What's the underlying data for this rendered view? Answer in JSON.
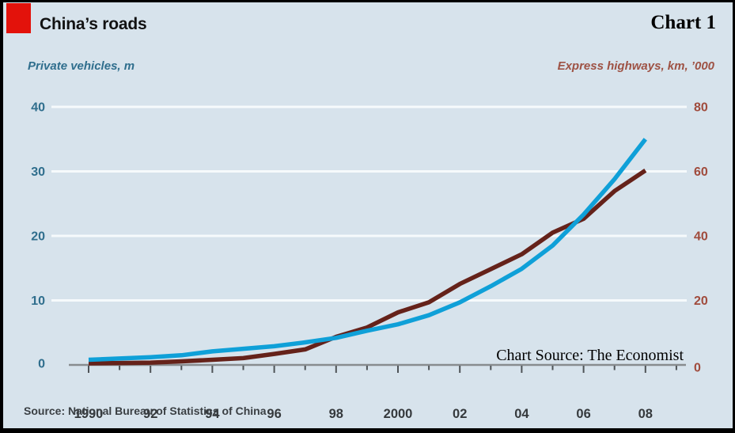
{
  "header": {
    "title": "China’s roads",
    "chart_label": "Chart 1",
    "left_axis_title": "Private vehicles, m",
    "right_axis_title": "Express highways, km, ’000"
  },
  "annotations": {
    "chart_source": "Chart Source: The Economist"
  },
  "footer": {
    "source": "Source: National Bureau of Statistics of China"
  },
  "colors": {
    "background": "#d7e3ec",
    "frame": "#000000",
    "brand_red": "#e3120b",
    "left_axis_teal": "#2f6e8d",
    "right_axis_brick": "#a04b3c",
    "line_private_vehicles": "#0fa0d8",
    "line_express_highways": "#65221a",
    "gridline": "#f6fafc",
    "axis_line": "#888c8f",
    "tick": "#4e5357",
    "x_label": "#35393c"
  },
  "chart_data": {
    "type": "line",
    "title": "China’s roads",
    "x": [
      1990,
      1991,
      1992,
      1993,
      1994,
      1995,
      1996,
      1997,
      1998,
      1999,
      2000,
      2001,
      2002,
      2003,
      2004,
      2005,
      2006,
      2007,
      2008
    ],
    "series": [
      {
        "name": "Private vehicles, m",
        "axis": "left",
        "color": "#0fa0d8",
        "values": [
          0.8,
          1.0,
          1.2,
          1.5,
          2.1,
          2.5,
          2.9,
          3.5,
          4.2,
          5.3,
          6.3,
          7.7,
          9.7,
          12.2,
          14.9,
          18.5,
          23.3,
          28.8,
          35.0
        ]
      },
      {
        "name": "Express highways, km, ’000",
        "axis": "right",
        "color": "#65221a",
        "values": [
          0.5,
          0.6,
          0.7,
          1.1,
          1.6,
          2.1,
          3.4,
          4.8,
          8.7,
          11.6,
          16.3,
          19.4,
          25.1,
          29.7,
          34.3,
          41.0,
          45.3,
          53.9,
          60.3
        ]
      }
    ],
    "left_axis": {
      "label": "Private vehicles, m",
      "ticks": [
        0,
        10,
        20,
        30,
        40
      ],
      "range": [
        0,
        40
      ]
    },
    "right_axis": {
      "label": "Express highways, km, ’000",
      "ticks": [
        0,
        20,
        40,
        60,
        80
      ],
      "range": [
        0,
        80
      ]
    },
    "x_axis": {
      "tick_years_start": 1990,
      "tick_years_end": 2009,
      "labels": [
        {
          "year": 1990,
          "label": "1990"
        },
        {
          "year": 1992,
          "label": "92"
        },
        {
          "year": 1994,
          "label": "94"
        },
        {
          "year": 1996,
          "label": "96"
        },
        {
          "year": 1998,
          "label": "98"
        },
        {
          "year": 2000,
          "label": "2000"
        },
        {
          "year": 2002,
          "label": "02"
        },
        {
          "year": 2004,
          "label": "04"
        },
        {
          "year": 2006,
          "label": "06"
        },
        {
          "year": 2008,
          "label": "08"
        }
      ]
    },
    "grid": true,
    "legend_position": "axis-titles"
  }
}
